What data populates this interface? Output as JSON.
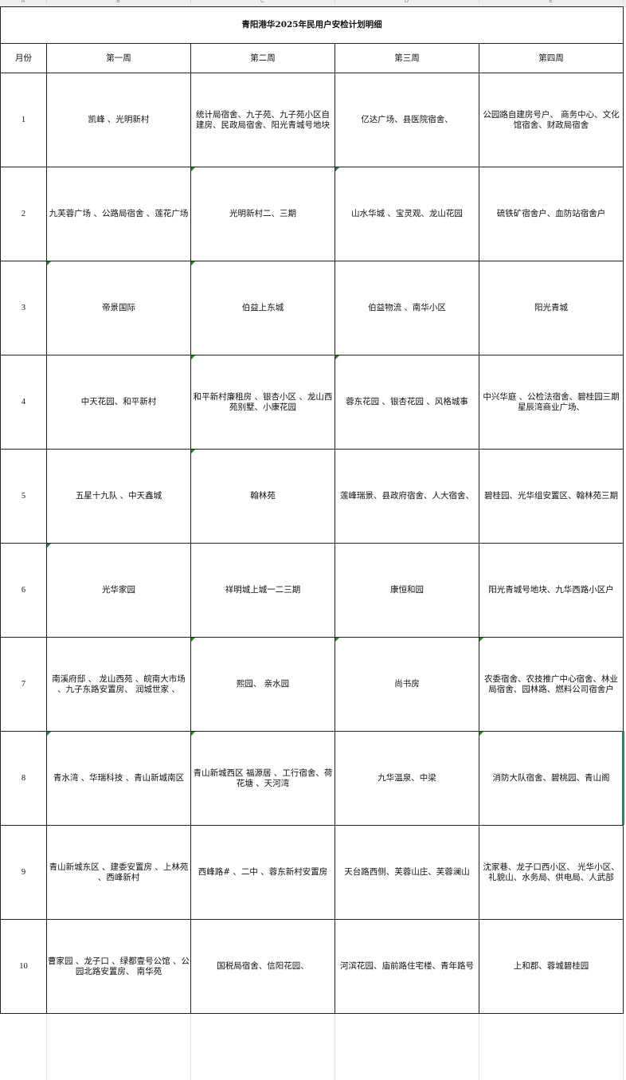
{
  "column_letters": [
    "A",
    "B",
    "C",
    "D",
    "E"
  ],
  "title": "青阳港华2025年民用户安检计划明细",
  "headers": [
    "月份",
    "第一周",
    "第二周",
    "第三周",
    "第四周"
  ],
  "rows": [
    {
      "month": "1",
      "weeks": [
        "凯峰 、光明新村",
        "统计局宿舍、九子苑、九子苑小区自建房、民政局宿舍、阳光青城号地块",
        "亿达广场、县医院宿舍、",
        "公园路自建房号户、 商务中心、文化馆宿舍、财政局宿舍"
      ]
    },
    {
      "month": "2",
      "weeks": [
        "九芙蓉广场 、公路局宿舍 、莲花广场",
        "光明新村二、三期",
        "山水华城 、宝灵观、龙山花园",
        "硫铁矿宿舍户、血防站宿舍户"
      ]
    },
    {
      "month": "3",
      "weeks": [
        "帝景国际",
        "伯益上东城",
        "伯益物流 、南华小区",
        "阳光青城"
      ]
    },
    {
      "month": "4",
      "weeks": [
        "中天花园、和平新村",
        "和平新村廉租房 、银杏小区 、龙山西苑别墅、小康花园",
        "蓉东花园 、银杏花园 、风格城事",
        "中兴华庭 、公检法宿舍、碧桂园三期星辰湾商业广场、"
      ]
    },
    {
      "month": "5",
      "weeks": [
        "五星十九队 、中天鑫城",
        "翰林苑",
        "莲峰瑞景、县政府宿舍、人大宿舍、",
        "碧桂园、光华组安置区、翰林苑三期"
      ]
    },
    {
      "month": "6",
      "weeks": [
        "光华家园",
        "祥明城上城一二三期",
        "康恒和园",
        "阳光青城号地块、九华西路小区户"
      ]
    },
    {
      "month": "7",
      "weeks": [
        "南溪府邸 、 龙山西苑 、皖南大市场 、九子东路安置房、 润城世家 、",
        "熙园、 亲水园",
        "尚书房",
        "农委宿舍、农技推广中心宿舍、林业局宿舍、园林路、燃料公司宿舍户"
      ]
    },
    {
      "month": "8",
      "weeks": [
        "青水湾 、华瑞科技 、青山新城南区",
        "青山新城西区 福源居 、工行宿舍、荷花塘 、天河湾",
        "九华温泉、中梁",
        "消防大队宿舍、碧桃园、青山阁"
      ]
    },
    {
      "month": "9",
      "weeks": [
        "青山新城东区 、建委安置房 、上林苑 、西峰新村",
        "西峰路# 、二中 、蓉东新村安置房",
        "天台路西侧、芙蓉山庄、芙蓉澜山",
        "沈家巷、龙子口西小区、 光华小区、礼貌山、水务局、供电局、人武部"
      ]
    },
    {
      "month": "10",
      "weeks": [
        "曹家园 、龙子口 、绿都壹号公馆 、公园北路安置房、 南华苑",
        "国税局宿舍、信阳花园、",
        "河滨花园、庙前路住宅楼、青年路号",
        "上和郡、蓉城碧桂园"
      ]
    }
  ],
  "colors": {
    "grid": "#222222",
    "comment_marker": "#1e8a1e",
    "selection": "#1f8a5a"
  }
}
